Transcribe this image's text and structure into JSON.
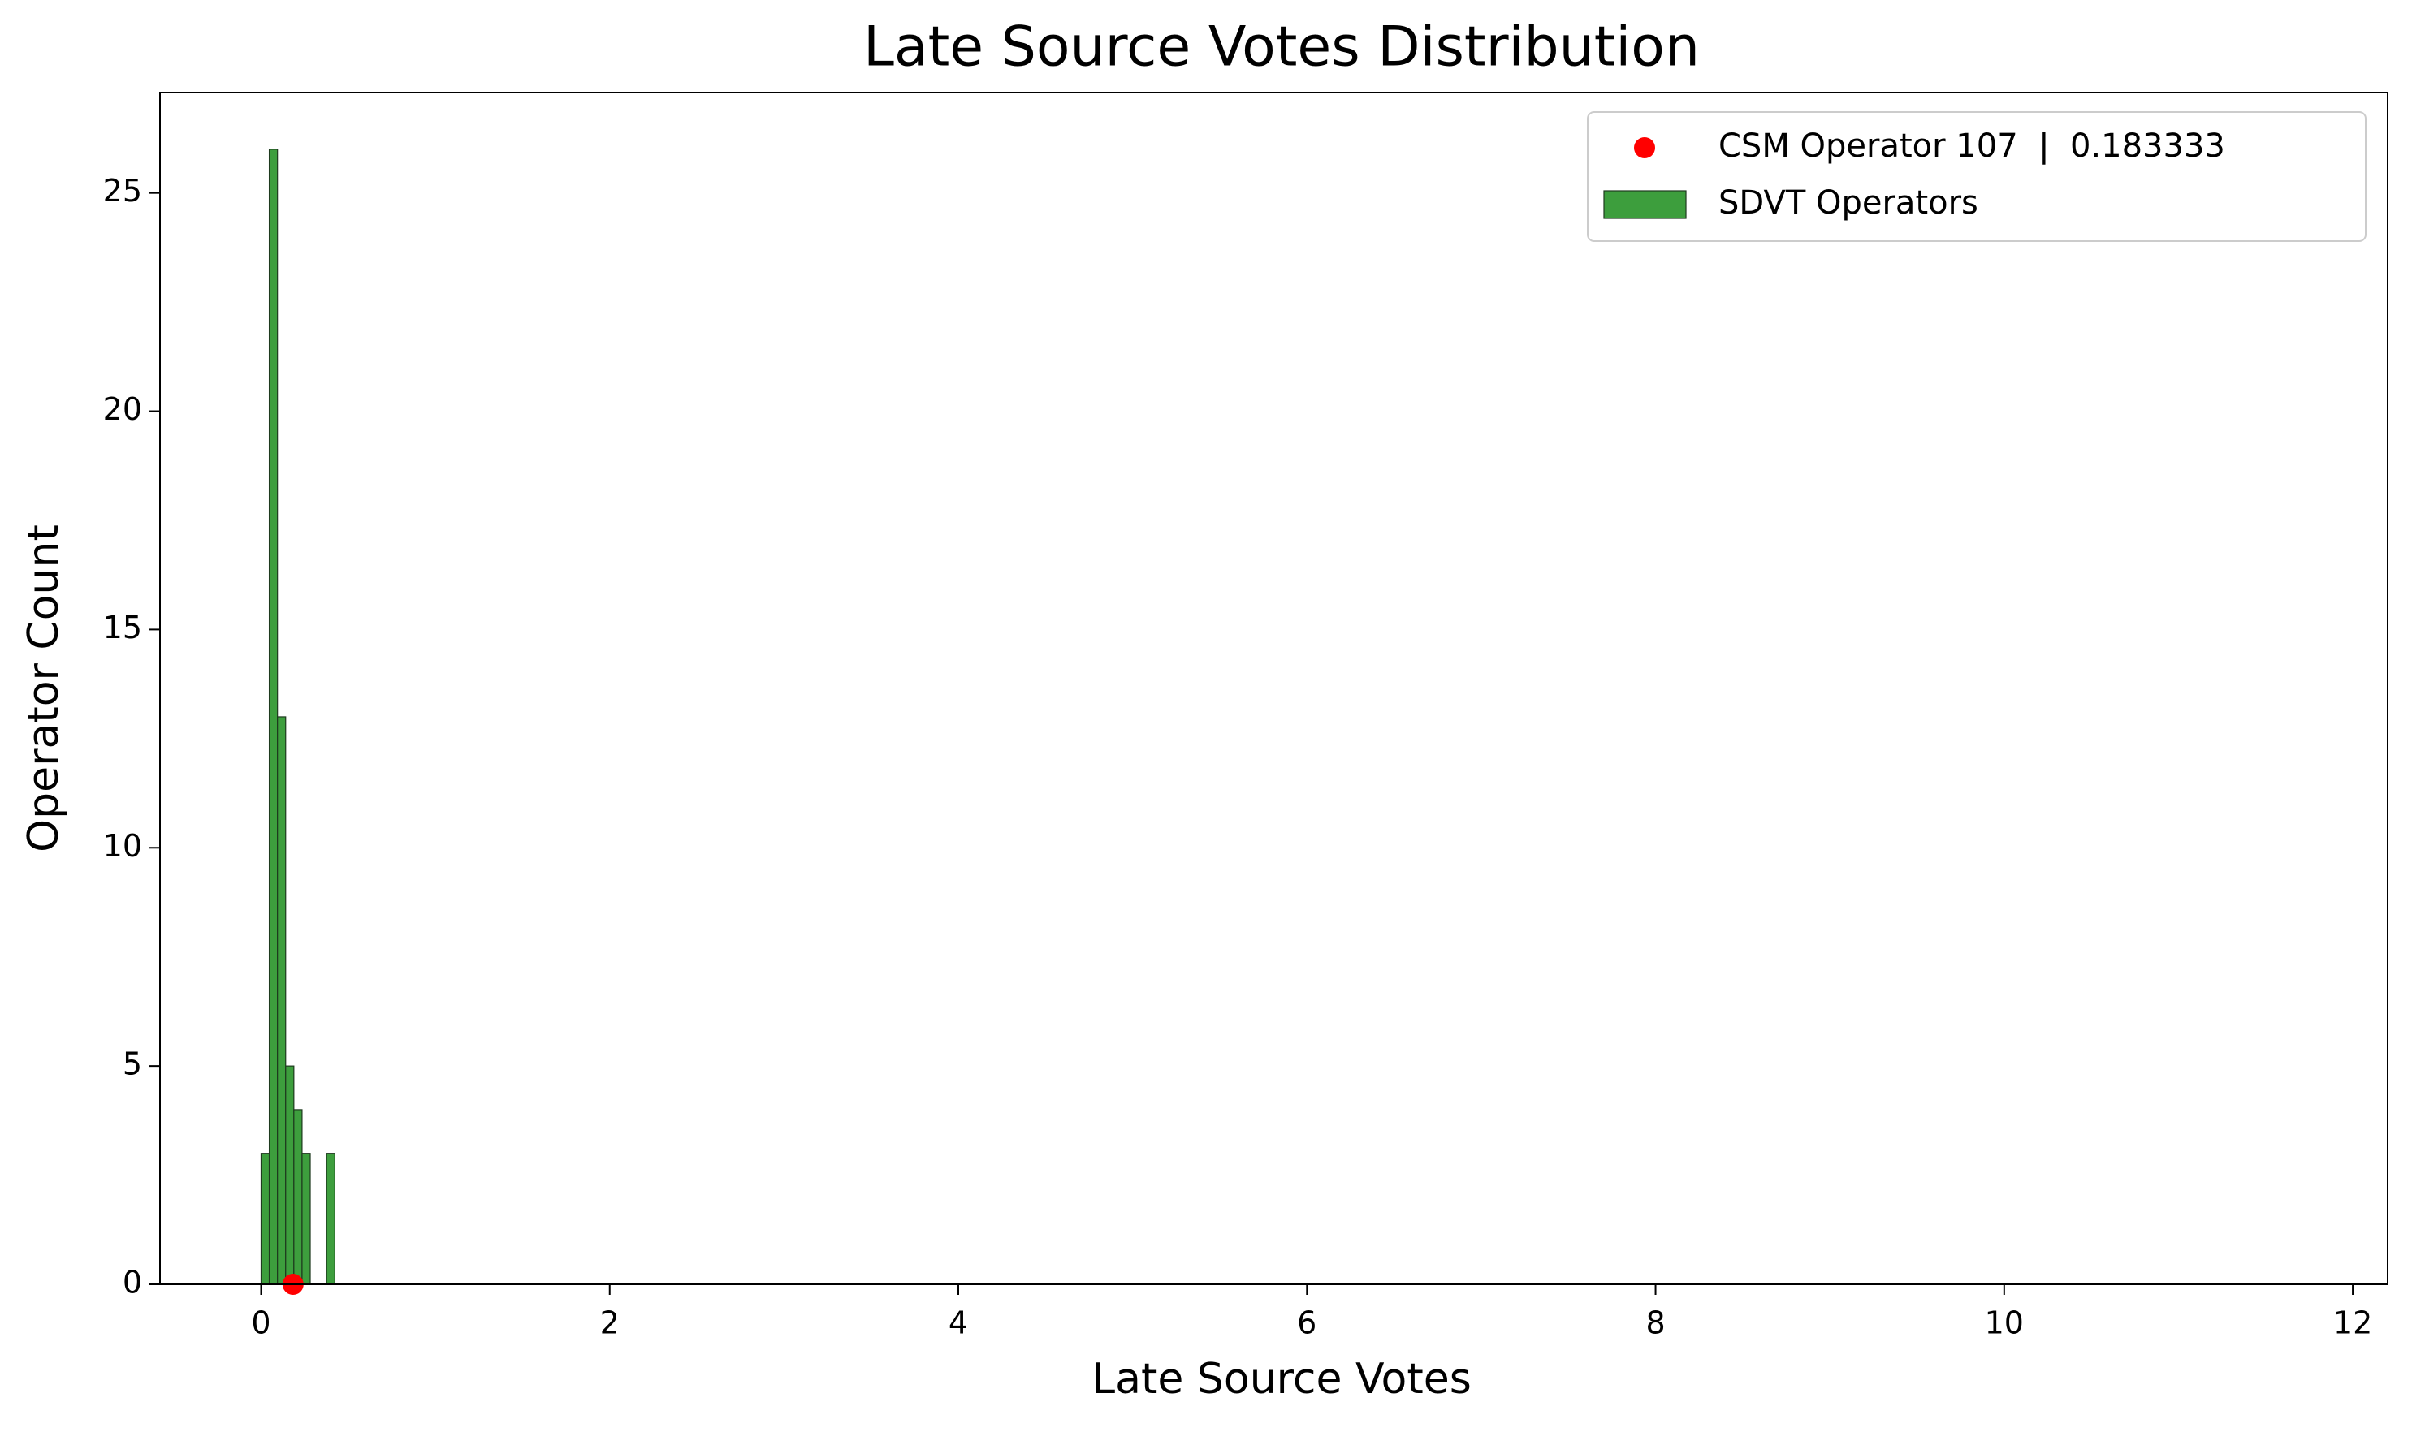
{
  "chart_data": {
    "type": "histogram",
    "title": "Late Source Votes Distribution",
    "x_label": "Late Source Votes",
    "y_label": "Operator Count",
    "series": [
      {
        "name": "CSM Operator 107  |  0.183333",
        "type": "scatter",
        "color": "#ff0000",
        "x": [
          0.183333
        ],
        "values": [
          0
        ]
      },
      {
        "name": "SDVT Operators",
        "type": "histogram",
        "color": "#3d9e3d",
        "bins": [
          0,
          0.047,
          0.094,
          0.141,
          0.188,
          0.235,
          0.282,
          0.329,
          0.376,
          0.423
        ],
        "values": [
          3,
          26,
          13,
          5,
          4,
          3,
          0,
          0,
          3
        ]
      }
    ],
    "xlim": [
      -0.58,
      12.2
    ],
    "xticks": [
      0,
      2,
      4,
      6,
      8,
      10,
      12
    ],
    "ylim": [
      0,
      27.3
    ],
    "yticks": [
      0,
      5,
      10,
      15,
      20,
      25
    ],
    "grid": false,
    "legend": "upper right"
  }
}
